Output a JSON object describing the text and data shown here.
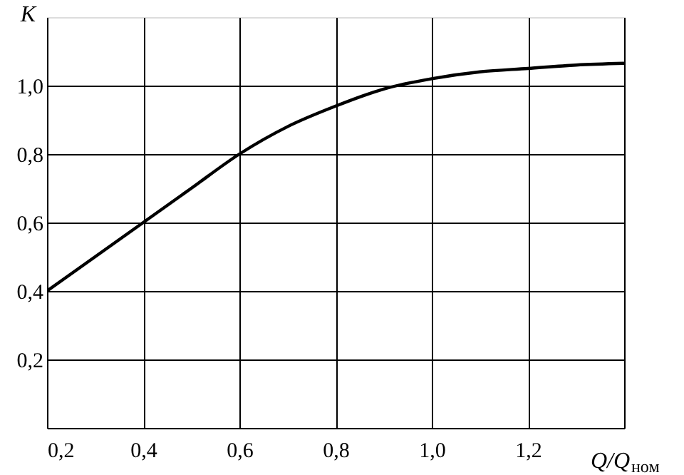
{
  "chart_data": {
    "type": "line",
    "xlabel": "Q/Q$_{ном}$",
    "ylabel": "K",
    "x": [
      0.2,
      0.3,
      0.4,
      0.5,
      0.6,
      0.7,
      0.8,
      0.9,
      1.0,
      1.1,
      1.2,
      1.3,
      1.4
    ],
    "series": [
      {
        "color": "#000000",
        "values": [
          0.4,
          0.5,
          0.6,
          0.7,
          0.8,
          0.88,
          0.94,
          0.99,
          1.02,
          1.04,
          1.05,
          1.06,
          1.065
        ]
      }
    ],
    "xlim": [
      0.2,
      1.4
    ],
    "ylim": [
      0,
      1.2
    ],
    "xticks": [
      {
        "value": 0.2,
        "label": "0,2"
      },
      {
        "value": 0.4,
        "label": "0,4"
      },
      {
        "value": 0.6,
        "label": "0,6"
      },
      {
        "value": 0.8,
        "label": "0,8"
      },
      {
        "value": 1.0,
        "label": "1,0"
      },
      {
        "value": 1.2,
        "label": "1,2"
      },
      {
        "value": 1.4,
        "label": null
      }
    ],
    "yticks": [
      {
        "value": 0.2,
        "label": "0,2"
      },
      {
        "value": 0.4,
        "label": "0,4"
      },
      {
        "value": 0.6,
        "label": "0,6"
      },
      {
        "value": 0.8,
        "label": "0,8"
      },
      {
        "value": 1.0,
        "label": "1,0"
      }
    ],
    "grid": true,
    "marker": "none",
    "line_style": "solid"
  }
}
